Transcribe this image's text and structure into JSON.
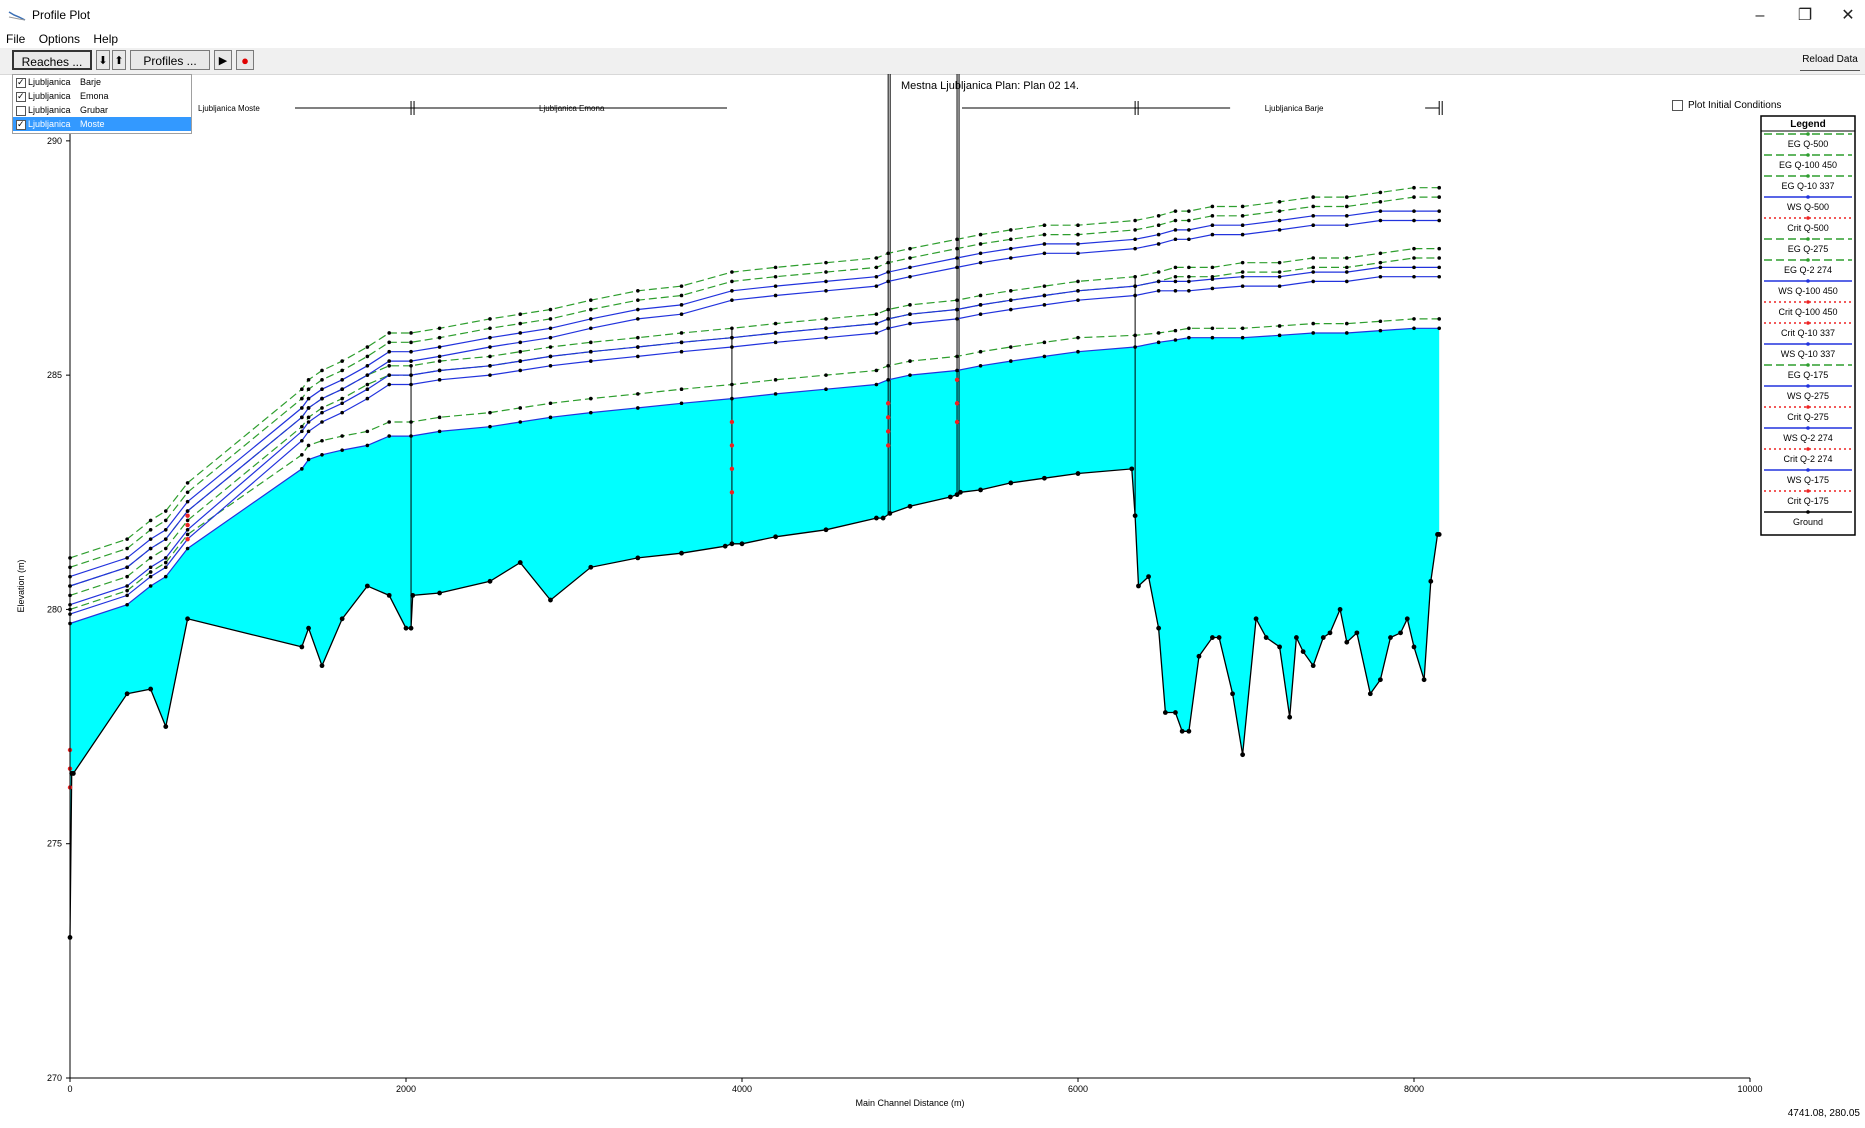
{
  "window": {
    "title": "Profile Plot",
    "minimize_glyph": "–",
    "maximize_glyph": "❐",
    "close_glyph": "✕",
    "icon": "profile-plot-icon"
  },
  "menu": [
    "File",
    "Options",
    "Help"
  ],
  "toolbar": {
    "reaches_label": "Reaches ...",
    "down_arrow": "⬇",
    "up_arrow": "⬆",
    "profiles_label": "Profiles ...",
    "play_glyph": "▶",
    "record_glyph": "●",
    "plot_initial_conditions": "Plot Initial Conditions",
    "reload_data": "Reload Data"
  },
  "reaches": [
    {
      "river": "Ljubljanica",
      "reach": "Barje",
      "checked": true,
      "selected": false
    },
    {
      "river": "Ljubljanica",
      "reach": "Emona",
      "checked": true,
      "selected": false
    },
    {
      "river": "Ljubljanica",
      "reach": "Grubar",
      "checked": false,
      "selected": false
    },
    {
      "river": "Ljubljanica",
      "reach": "Moste",
      "checked": true,
      "selected": true
    }
  ],
  "legend_title": "Legend",
  "coords_readout": "4741.08, 280.05",
  "chart_data": {
    "type": "line",
    "title": "Mestna Ljubljanica      Plan: Plan 02     14.",
    "xlabel": "Main Channel Distance (m)",
    "ylabel": "Elevation (m)",
    "xlim": [
      0,
      10000
    ],
    "ylim": [
      270,
      291
    ],
    "xticks": [
      0,
      2000,
      4000,
      6000,
      8000,
      10000
    ],
    "yticks": [
      270,
      275,
      280,
      285,
      290
    ],
    "grid": false,
    "legend_position": "right",
    "reach_labels": [
      {
        "label": "Ljubljanica Moste",
        "from": 0,
        "to": 2030
      },
      {
        "label": "Ljubljanica Emona",
        "from": 2030,
        "to": 6350
      },
      {
        "label": "Ljubljanica Barje",
        "from": 6350,
        "to": 8150
      }
    ],
    "ground": {
      "name": "Ground",
      "x": [
        0,
        10,
        20,
        340,
        480,
        570,
        700,
        1380,
        1420,
        1500,
        1620,
        1770,
        1900,
        2000,
        2030,
        2040,
        2200,
        2500,
        2680,
        2860,
        3100,
        3380,
        3640,
        3900,
        3940,
        4000,
        4200,
        4500,
        4800,
        4840,
        4880,
        5000,
        5240,
        5280,
        5300,
        5420,
        5600,
        5800,
        6000,
        6320,
        6340,
        6360,
        6420,
        6480,
        6520,
        6580,
        6620,
        6660,
        6720,
        6800,
        6840,
        6920,
        6980,
        7060,
        7120,
        7200,
        7260,
        7300,
        7340,
        7400,
        7460,
        7500,
        7560,
        7600,
        7660,
        7740,
        7800,
        7860,
        7920,
        7960,
        8000,
        8060,
        8100,
        8140,
        8150
      ],
      "y": [
        273,
        276.5,
        276.5,
        278.2,
        278.3,
        277.5,
        279.8,
        279.2,
        279.6,
        278.8,
        279.8,
        280.5,
        280.3,
        279.6,
        279.6,
        280.3,
        280.35,
        280.6,
        281.0,
        280.2,
        280.9,
        281.1,
        281.2,
        281.35,
        281.4,
        281.4,
        281.55,
        281.7,
        281.95,
        281.95,
        282.05,
        282.2,
        282.4,
        282.45,
        282.5,
        282.55,
        282.7,
        282.8,
        282.9,
        283.0,
        282.0,
        280.5,
        280.7,
        279.6,
        277.8,
        277.8,
        277.4,
        277.4,
        279.0,
        279.4,
        279.4,
        278.2,
        276.9,
        279.8,
        279.4,
        279.2,
        277.7,
        279.4,
        279.1,
        278.8,
        279.4,
        279.5,
        280.0,
        279.3,
        279.5,
        278.2,
        278.5,
        279.4,
        279.5,
        279.8,
        279.2,
        278.5,
        280.6,
        281.6,
        281.6
      ]
    },
    "profile_x": [
      0,
      340,
      480,
      570,
      700,
      1380,
      1420,
      1500,
      1620,
      1770,
      1900,
      2030,
      2200,
      2500,
      2680,
      2860,
      3100,
      3380,
      3640,
      3940,
      4200,
      4500,
      4800,
      4870,
      5000,
      5280,
      5420,
      5600,
      5800,
      6000,
      6340,
      6480,
      6580,
      6660,
      6800,
      6980,
      7200,
      7400,
      7600,
      7800,
      8000,
      8150
    ],
    "series": [
      {
        "name": "EG  Q-500",
        "style": "eg",
        "y": [
          281.1,
          281.5,
          281.9,
          282.1,
          282.7,
          284.7,
          284.9,
          285.1,
          285.3,
          285.6,
          285.9,
          285.9,
          286.0,
          286.2,
          286.3,
          286.4,
          286.6,
          286.8,
          286.9,
          287.2,
          287.3,
          287.4,
          287.5,
          287.6,
          287.7,
          287.9,
          288.0,
          288.1,
          288.2,
          288.2,
          288.3,
          288.4,
          288.5,
          288.5,
          288.6,
          288.6,
          288.7,
          288.8,
          288.8,
          288.9,
          289.0,
          289.0
        ]
      },
      {
        "name": "EG  Q-100  450",
        "style": "eg",
        "y": [
          280.9,
          281.3,
          281.7,
          281.9,
          282.5,
          284.5,
          284.7,
          284.9,
          285.1,
          285.4,
          285.7,
          285.7,
          285.8,
          286.0,
          286.1,
          286.2,
          286.4,
          286.6,
          286.7,
          287.0,
          287.1,
          287.2,
          287.3,
          287.4,
          287.5,
          287.7,
          287.8,
          287.9,
          288.0,
          288.0,
          288.1,
          288.2,
          288.3,
          288.3,
          288.4,
          288.4,
          288.5,
          288.6,
          288.6,
          288.7,
          288.8,
          288.8
        ]
      },
      {
        "name": "EG  Q-10 337",
        "style": "eg",
        "y": [
          280.5,
          280.9,
          281.3,
          281.5,
          282.1,
          284.1,
          284.3,
          284.5,
          284.7,
          285.0,
          285.2,
          285.2,
          285.3,
          285.4,
          285.5,
          285.6,
          285.7,
          285.8,
          285.9,
          286.0,
          286.1,
          286.2,
          286.3,
          286.4,
          286.5,
          286.6,
          286.7,
          286.8,
          286.9,
          287.0,
          287.1,
          287.2,
          287.3,
          287.3,
          287.3,
          287.4,
          287.4,
          287.5,
          287.5,
          287.6,
          287.7,
          287.7
        ]
      },
      {
        "name": "WS  Q-500",
        "style": "ws",
        "y": [
          280.7,
          281.1,
          281.5,
          281.7,
          282.3,
          284.3,
          284.5,
          284.7,
          284.9,
          285.2,
          285.5,
          285.5,
          285.6,
          285.8,
          285.9,
          286.0,
          286.2,
          286.4,
          286.5,
          286.8,
          286.9,
          287.0,
          287.1,
          287.2,
          287.3,
          287.5,
          287.6,
          287.7,
          287.8,
          287.8,
          287.9,
          288.0,
          288.1,
          288.1,
          288.2,
          288.2,
          288.3,
          288.4,
          288.4,
          288.5,
          288.5,
          288.5
        ]
      },
      {
        "name": "Crit  Q-500",
        "style": "crit",
        "y": []
      },
      {
        "name": "EG  Q-275",
        "style": "eg",
        "y": [
          280.3,
          280.7,
          281.1,
          281.3,
          281.9,
          283.9,
          284.1,
          284.3,
          284.5,
          284.8,
          285.0,
          285.0,
          285.1,
          285.2,
          285.3,
          285.4,
          285.5,
          285.6,
          285.7,
          285.8,
          285.9,
          286.0,
          286.1,
          286.2,
          286.3,
          286.4,
          286.5,
          286.6,
          286.7,
          286.8,
          286.9,
          287.0,
          287.1,
          287.1,
          287.1,
          287.2,
          287.2,
          287.3,
          287.3,
          287.4,
          287.5,
          287.5
        ]
      },
      {
        "name": "EG  Q-2 274",
        "style": "eg",
        "y": [
          280.0,
          280.4,
          280.8,
          281.0,
          281.6,
          283.3,
          283.5,
          283.6,
          283.7,
          283.8,
          284.0,
          284.0,
          284.1,
          284.2,
          284.3,
          284.4,
          284.5,
          284.6,
          284.7,
          284.8,
          284.9,
          285.0,
          285.1,
          285.2,
          285.3,
          285.4,
          285.5,
          285.6,
          285.7,
          285.8,
          285.85,
          285.9,
          285.95,
          286.0,
          286.0,
          286.0,
          286.05,
          286.1,
          286.1,
          286.15,
          286.2,
          286.2
        ]
      },
      {
        "name": "WS  Q-100  450",
        "style": "ws",
        "y": [
          280.5,
          280.9,
          281.3,
          281.5,
          282.1,
          284.1,
          284.3,
          284.5,
          284.7,
          285.0,
          285.3,
          285.3,
          285.4,
          285.6,
          285.7,
          285.8,
          286.0,
          286.2,
          286.3,
          286.6,
          286.7,
          286.8,
          286.9,
          287.0,
          287.1,
          287.3,
          287.4,
          287.5,
          287.6,
          287.6,
          287.7,
          287.8,
          287.9,
          287.9,
          288.0,
          288.0,
          288.1,
          288.2,
          288.2,
          288.3,
          288.3,
          288.3
        ]
      },
      {
        "name": "Crit  Q-100  450",
        "style": "crit",
        "y": []
      },
      {
        "name": "Crit  Q-10 337",
        "style": "crit",
        "y": []
      },
      {
        "name": "WS  Q-10 337",
        "style": "ws",
        "y": [
          280.1,
          280.5,
          280.9,
          281.1,
          281.7,
          283.8,
          284.0,
          284.2,
          284.4,
          284.7,
          285.0,
          285.0,
          285.1,
          285.2,
          285.3,
          285.4,
          285.5,
          285.6,
          285.7,
          285.8,
          285.9,
          286.0,
          286.1,
          286.2,
          286.3,
          286.4,
          286.5,
          286.6,
          286.7,
          286.8,
          286.9,
          287.0,
          287.0,
          287.0,
          287.05,
          287.1,
          287.1,
          287.2,
          287.2,
          287.3,
          287.3,
          287.3
        ]
      },
      {
        "name": "EG  Q-175",
        "style": "eg",
        "y": []
      },
      {
        "name": "WS  Q-275",
        "style": "ws",
        "y": [
          279.9,
          280.3,
          280.7,
          280.9,
          281.5,
          283.6,
          283.8,
          284.0,
          284.2,
          284.5,
          284.8,
          284.8,
          284.9,
          285.0,
          285.1,
          285.2,
          285.3,
          285.4,
          285.5,
          285.6,
          285.7,
          285.8,
          285.9,
          286.0,
          286.1,
          286.2,
          286.3,
          286.4,
          286.5,
          286.6,
          286.7,
          286.8,
          286.8,
          286.8,
          286.85,
          286.9,
          286.9,
          287.0,
          287.0,
          287.1,
          287.1,
          287.1
        ]
      },
      {
        "name": "Crit  Q-275",
        "style": "crit",
        "y": []
      },
      {
        "name": "WS  Q-2 274",
        "style": "ws",
        "y": [
          279.7,
          280.1,
          280.5,
          280.7,
          281.3,
          283.0,
          283.2,
          283.3,
          283.4,
          283.5,
          283.7,
          283.7,
          283.8,
          283.9,
          284.0,
          284.1,
          284.2,
          284.3,
          284.4,
          284.5,
          284.6,
          284.7,
          284.8,
          284.9,
          285.0,
          285.1,
          285.2,
          285.3,
          285.4,
          285.5,
          285.6,
          285.7,
          285.75,
          285.8,
          285.8,
          285.8,
          285.85,
          285.9,
          285.9,
          285.95,
          286.0,
          286.0
        ]
      },
      {
        "name": "Crit  Q-2 274",
        "style": "crit",
        "y": []
      },
      {
        "name": "WS  Q-175",
        "style": "ws",
        "y": []
      },
      {
        "name": "Crit  Q-175",
        "style": "crit",
        "y": []
      },
      {
        "name": "Ground",
        "style": "ground",
        "y": []
      }
    ],
    "crit_marks": [
      {
        "x": 700,
        "y": [
          281.5,
          281.8,
          282.0
        ]
      },
      {
        "x": 3940,
        "y": [
          282.5,
          283.0,
          283.5,
          284.0
        ]
      },
      {
        "x": 4870,
        "y": [
          283.5,
          283.8,
          284.1,
          284.4
        ]
      },
      {
        "x": 5280,
        "y": [
          284.0,
          284.4,
          284.9
        ]
      },
      {
        "x": 0,
        "y": [
          276.2,
          276.6,
          277.0
        ]
      }
    ],
    "structures": [
      {
        "x": 4870,
        "top": 291.5
      },
      {
        "x": 5280,
        "top": 291.6
      }
    ],
    "reach_bounds": [
      2030,
      3940,
      6340
    ]
  }
}
